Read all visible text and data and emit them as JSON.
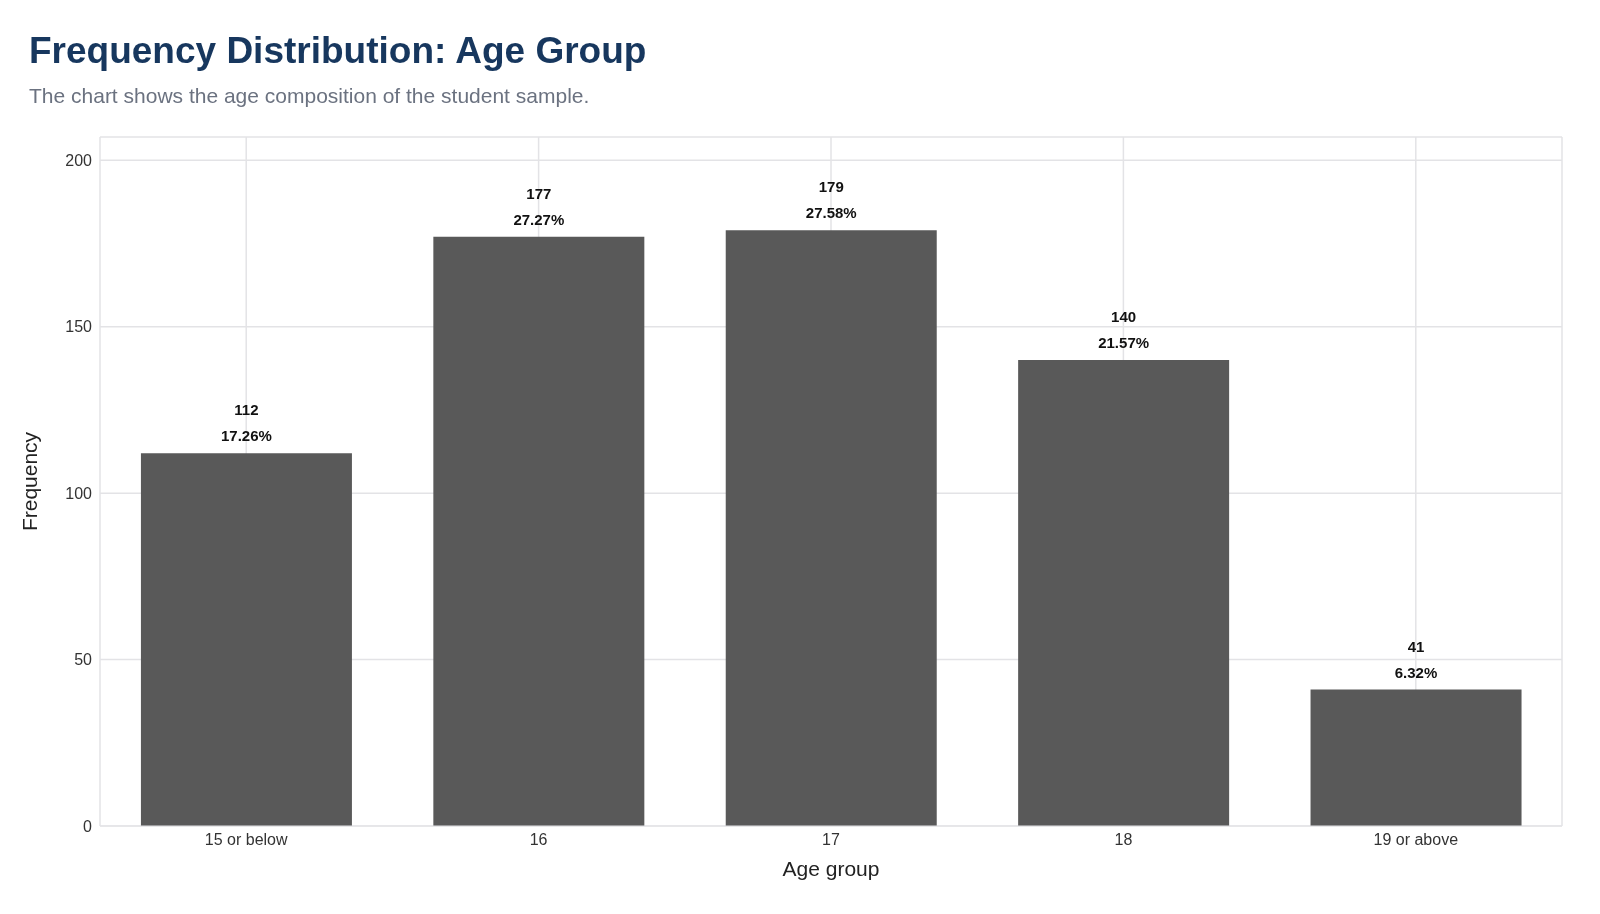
{
  "chart_data": {
    "type": "bar",
    "title": "Frequency Distribution: Age Group",
    "subtitle": "The chart shows the age composition of the student sample.",
    "xlabel": "Age group",
    "ylabel": "Frequency",
    "categories": [
      "15 or below",
      "16",
      "17",
      "18",
      "19 or above"
    ],
    "values": [
      112,
      177,
      179,
      140,
      41
    ],
    "color": "#595959",
    "value_labels": [
      "112\n17.26%",
      "177\n27.27%",
      "179\n27.58%",
      "140\n21.57%",
      "41\n6.32%"
    ],
    "ylim": [
      0,
      207
    ],
    "yticks": [
      0,
      50,
      100,
      150,
      200
    ],
    "grid": true,
    "legend": false
  }
}
